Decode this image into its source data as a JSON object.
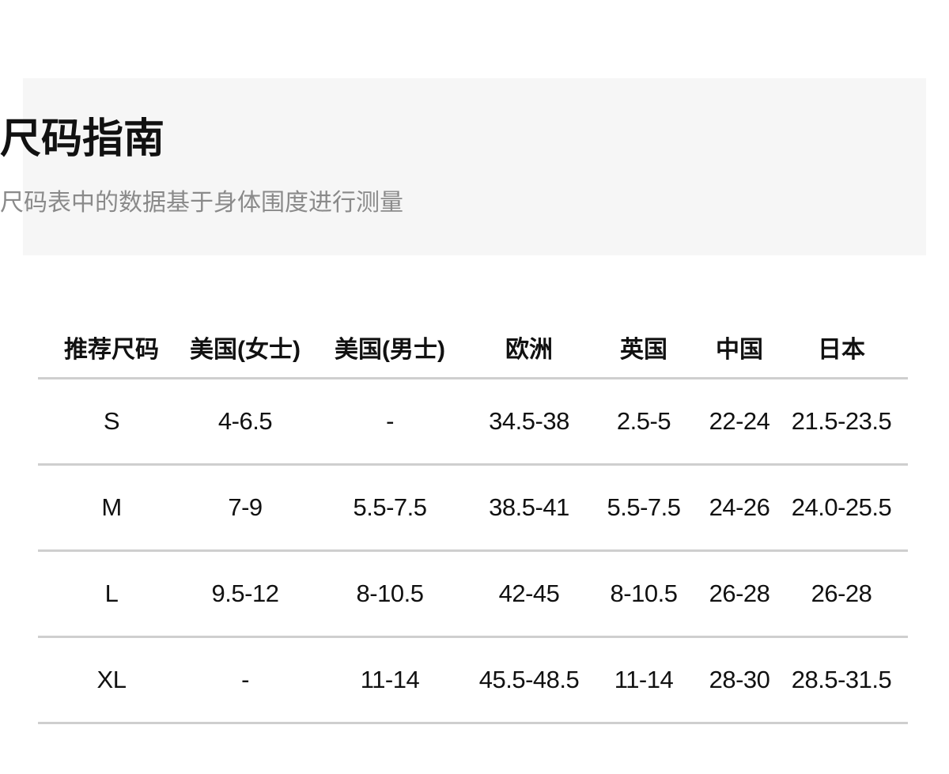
{
  "header": {
    "title": "尺码指南",
    "subtitle": "尺码表中的数据基于身体围度进行测量"
  },
  "table": {
    "columns": [
      "推荐尺码",
      "美国(女士)",
      "美国(男士)",
      "欧洲",
      "英国",
      "中国",
      "日本"
    ],
    "rows": [
      [
        "S",
        "4-6.5",
        "-",
        "34.5-38",
        "2.5-5",
        "22-24",
        "21.5-23.5"
      ],
      [
        "M",
        "7-9",
        "5.5-7.5",
        "38.5-41",
        "5.5-7.5",
        "24-26",
        "24.0-25.5"
      ],
      [
        "L",
        "9.5-12",
        "8-10.5",
        "42-45",
        "8-10.5",
        "26-28",
        "26-28"
      ],
      [
        "XL",
        "-",
        "11-14",
        "45.5-48.5",
        "11-14",
        "28-30",
        "28.5-31.5"
      ]
    ]
  },
  "colors": {
    "header_bg": "#f6f6f6",
    "divider": "#cfcfcf",
    "subtitle": "#8a8a8a"
  }
}
